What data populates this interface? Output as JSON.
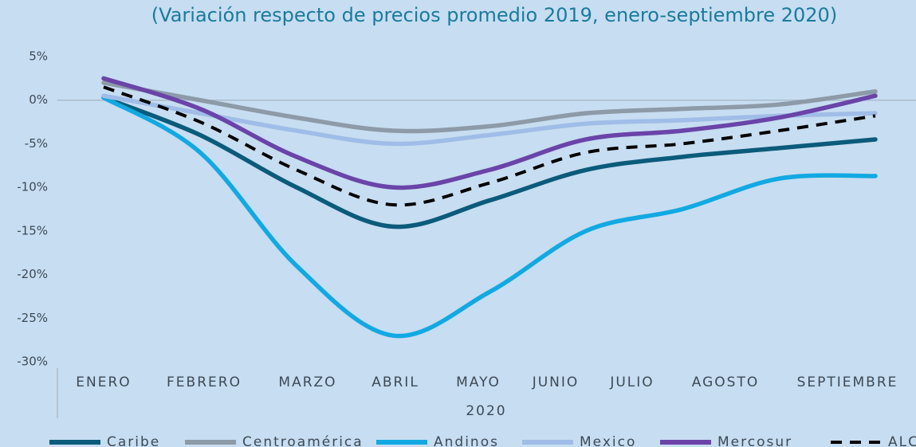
{
  "chart_data": {
    "type": "line",
    "title": "(Variación respecto de precios promedio 2019, enero-septiembre 2020)",
    "x_label": "2020",
    "categories": [
      "ENERO",
      "FEBRERO",
      "MARZO",
      "ABRIL",
      "MAYO",
      "JUNIO",
      "JULIO",
      "AGOSTO",
      "SEPTIEMBRE"
    ],
    "series": [
      {
        "name": "Caribe",
        "color": "#0b5b7b",
        "dashed": false,
        "values": [
          0.3,
          -4,
          -10,
          -14.5,
          -11.5,
          -8,
          -6.5,
          -5.5,
          -4.5
        ]
      },
      {
        "name": "Centroamérica",
        "color": "#8d9aa7",
        "dashed": false,
        "values": [
          2,
          0,
          -2,
          -3.5,
          -3,
          -1.5,
          -1,
          -0.5,
          1
        ]
      },
      {
        "name": "Andinos",
        "color": "#12a9e2",
        "dashed": false,
        "values": [
          0.3,
          -6,
          -19,
          -27,
          -22,
          -15,
          -12.5,
          -9,
          -8.7
        ]
      },
      {
        "name": "Mexico",
        "color": "#9fbde7",
        "dashed": false,
        "values": [
          0.5,
          -1.5,
          -3.5,
          -5,
          -4,
          -2.7,
          -2.3,
          -1.8,
          -1.5
        ]
      },
      {
        "name": "Mercosur",
        "color": "#6a44a8",
        "dashed": false,
        "values": [
          2.5,
          -1,
          -6.5,
          -10,
          -8,
          -4.5,
          -3.5,
          -2,
          0.5
        ]
      },
      {
        "name": "ALC",
        "color": "#000000",
        "dashed": true,
        "values": [
          1.5,
          -2.5,
          -8,
          -12,
          -9.5,
          -6,
          -5,
          -3.5,
          -1.8
        ]
      }
    ],
    "ylim": [
      -30,
      5
    ],
    "yticks": [
      {
        "value": 5,
        "label": "5%"
      },
      {
        "value": 0,
        "label": "0%"
      },
      {
        "value": -5,
        "label": "-5%"
      },
      {
        "value": -10,
        "label": "-10%"
      },
      {
        "value": -15,
        "label": "-15%"
      },
      {
        "value": -20,
        "label": "-20%"
      },
      {
        "value": -25,
        "label": "-25%"
      },
      {
        "value": -30,
        "label": "-30%"
      }
    ],
    "zero_line": true,
    "legend": "bottom"
  }
}
